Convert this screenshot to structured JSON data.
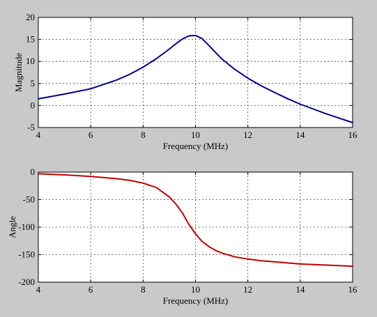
{
  "chart_data": [
    {
      "type": "line",
      "title": "",
      "xlabel": "Frequency (MHz)",
      "ylabel": "Magnitude",
      "xlim": [
        4,
        16
      ],
      "ylim": [
        -5,
        20
      ],
      "xticks": [
        4,
        6,
        8,
        10,
        12,
        14,
        16
      ],
      "yticks": [
        -5,
        0,
        5,
        10,
        15,
        20
      ],
      "grid": true,
      "series": [
        {
          "color": "#00008b",
          "x": [
            4,
            5,
            6,
            7,
            7.5,
            8,
            8.5,
            9,
            9.25,
            9.5,
            9.75,
            10,
            10.25,
            10.5,
            11,
            11.5,
            12,
            12.5,
            13,
            13.5,
            14,
            14.5,
            15,
            15.5,
            16
          ],
          "y": [
            1.5,
            2.6,
            3.8,
            5.8,
            7.1,
            8.7,
            10.6,
            12.8,
            14.0,
            15.1,
            15.8,
            15.9,
            15.2,
            13.7,
            10.6,
            8.2,
            6.2,
            4.5,
            3.0,
            1.6,
            0.3,
            -0.8,
            -1.9,
            -2.9,
            -3.9
          ]
        }
      ]
    },
    {
      "type": "line",
      "title": "",
      "xlabel": "Frequency (MHz)",
      "ylabel": "Angle",
      "xlim": [
        4,
        16
      ],
      "ylim": [
        -200,
        0
      ],
      "xticks": [
        4,
        6,
        8,
        10,
        12,
        14,
        16
      ],
      "yticks": [
        -200,
        -150,
        -100,
        -50,
        0
      ],
      "grid": true,
      "series": [
        {
          "color": "#c00000",
          "x": [
            4,
            5,
            6,
            7,
            7.5,
            8,
            8.5,
            9,
            9.25,
            9.5,
            9.75,
            10,
            10.25,
            10.5,
            10.75,
            11,
            11.5,
            12,
            12.5,
            13,
            14,
            15,
            16
          ],
          "y": [
            -3,
            -5,
            -8,
            -12,
            -15,
            -20,
            -28,
            -45,
            -58,
            -74,
            -95,
            -112,
            -126,
            -135,
            -142,
            -147,
            -154,
            -158,
            -161,
            -163,
            -167,
            -169,
            -171
          ]
        }
      ]
    }
  ]
}
